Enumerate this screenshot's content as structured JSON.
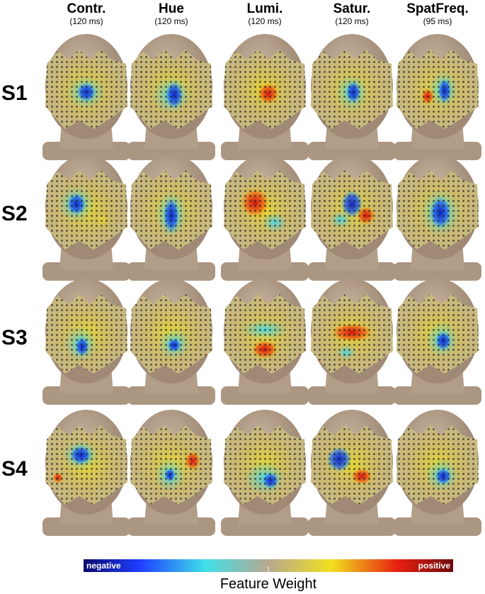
{
  "columns": [
    {
      "label": "Contr.",
      "time": "(120 ms)"
    },
    {
      "label": "Hue",
      "time": "(120 ms)"
    },
    {
      "label": "Lumi.",
      "time": "(120 ms)"
    },
    {
      "label": "Satur.",
      "time": "(120 ms)"
    },
    {
      "label": "SpatFreq.",
      "time": "(95 ms)"
    }
  ],
  "rows": [
    "S1",
    "S2",
    "S3",
    "S4"
  ],
  "colorbar": {
    "low": "negative",
    "high": "positive",
    "title": "Feature Weight"
  }
}
